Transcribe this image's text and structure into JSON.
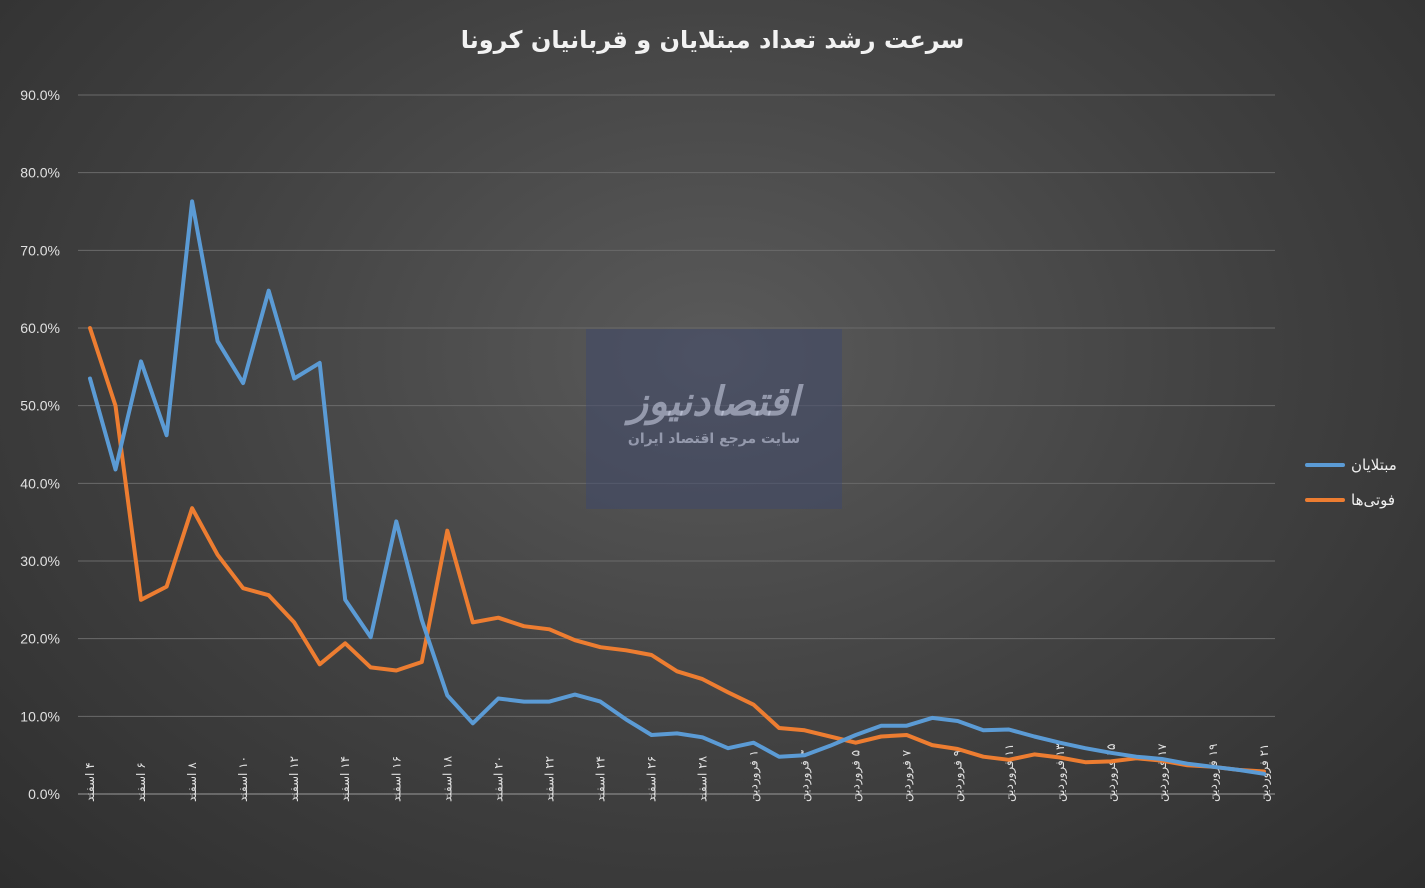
{
  "colors": {
    "series1": "#5b9bd5",
    "series2": "#ed7d31",
    "grid": "#6a6a6a",
    "axis": "#9a9a9a"
  },
  "watermark": {
    "logo_text": "اقتصادنیوز",
    "subtitle": "سایت مرجع اقتصاد ایران"
  },
  "chart_data": {
    "type": "line",
    "title": "سرعت رشد تعداد مبتلایان و قربانیان کرونا",
    "xlabel": "",
    "ylabel": "",
    "ylim": [
      0,
      90
    ],
    "y_ticks": [
      "0.0%",
      "10.0%",
      "20.0%",
      "30.0%",
      "40.0%",
      "50.0%",
      "60.0%",
      "70.0%",
      "80.0%",
      "90.0%"
    ],
    "grid": true,
    "legend_position": "right",
    "x_tick_labels": [
      "۴ اسفند",
      "۶ اسفند",
      "۸ اسفند",
      "۱۰ اسفند",
      "۱۲ اسفند",
      "۱۴ اسفند",
      "۱۶ اسفند",
      "۱۸ اسفند",
      "۲۰ اسفند",
      "۲۲ اسفند",
      "۲۴ اسفند",
      "۲۶ اسفند",
      "۲۸ اسفند",
      "۱ فروردین",
      "۳ فروردین",
      "۵ فروردین",
      "۷ فروردین",
      "۹ فروردین",
      "۱۱ فروردین",
      "۱۳ فروردین",
      "۱۵ فروردین",
      "۱۷ فروردین",
      "۱۹ فروردین",
      "۲۱ فروردین"
    ],
    "series": [
      {
        "name": "مبتلایان",
        "values": [
          53.5,
          41.8,
          55.7,
          46.2,
          76.3,
          58.3,
          52.9,
          64.8,
          53.5,
          55.5,
          25.0,
          20.2,
          35.1,
          22.4,
          12.7,
          9.1,
          12.3,
          11.9,
          11.9,
          12.8,
          11.9,
          9.6,
          7.6,
          7.8,
          7.3,
          5.9,
          6.6,
          4.8,
          5.0,
          6.2,
          7.6,
          8.8,
          8.8,
          9.8,
          9.4,
          8.2,
          8.3,
          7.4,
          6.6,
          5.9,
          5.3,
          4.8,
          4.5,
          3.9,
          3.5,
          3.1,
          2.6
        ]
      },
      {
        "name": "فوتی‌ها",
        "values": [
          60.0,
          50.0,
          25.0,
          26.7,
          36.8,
          30.8,
          26.5,
          25.6,
          22.1,
          16.7,
          19.4,
          16.3,
          15.9,
          17.0,
          33.9,
          22.1,
          22.7,
          21.6,
          21.2,
          19.8,
          18.9,
          18.5,
          17.9,
          15.8,
          14.8,
          13.1,
          11.5,
          8.5,
          8.2,
          7.4,
          6.6,
          7.4,
          7.6,
          6.3,
          5.8,
          4.8,
          4.4,
          5.1,
          4.7,
          4.1,
          4.2,
          4.6,
          4.3,
          3.7,
          3.5,
          3.1,
          2.9
        ]
      }
    ]
  }
}
